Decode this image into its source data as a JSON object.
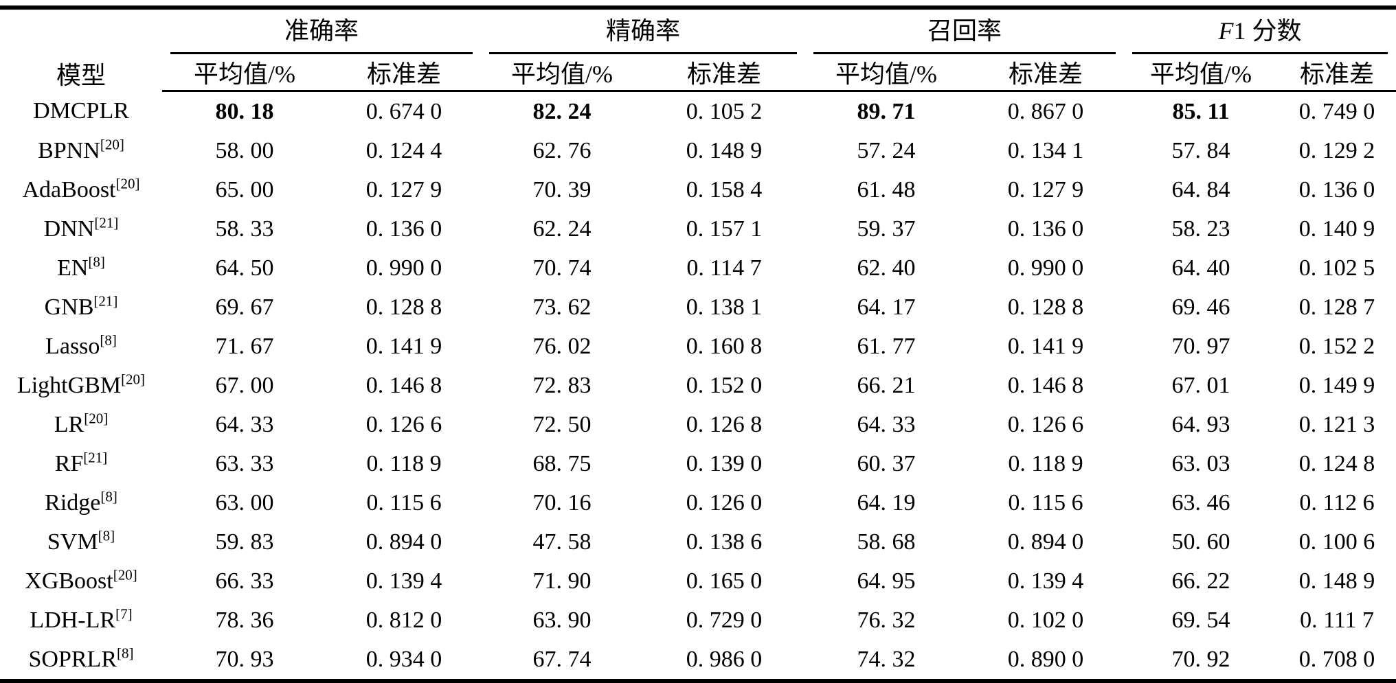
{
  "colors": {
    "background": "#ffffff",
    "text": "#000000",
    "rule": "#000000"
  },
  "table": {
    "model_header": "模型",
    "groups": [
      {
        "pre": "",
        "label": "准确率"
      },
      {
        "pre": "",
        "label": "精确率"
      },
      {
        "pre": "",
        "label": "召回率"
      },
      {
        "pre": "F",
        "label": "1 分数"
      }
    ],
    "sub_mean": "平均值/%",
    "sub_std": "标准差",
    "rows": [
      {
        "model": "DMCPLR",
        "ref": "",
        "bold_means": true,
        "values": [
          "80. 18",
          "0. 674 0",
          "82. 24",
          "0. 105 2",
          "89. 71",
          "0. 867 0",
          "85. 11",
          "0. 749 0"
        ]
      },
      {
        "model": "BPNN",
        "ref": "20",
        "bold_means": false,
        "values": [
          "58. 00",
          "0. 124 4",
          "62. 76",
          "0. 148 9",
          "57. 24",
          "0. 134 1",
          "57. 84",
          "0. 129 2"
        ]
      },
      {
        "model": "AdaBoost",
        "ref": "20",
        "bold_means": false,
        "values": [
          "65. 00",
          "0. 127 9",
          "70. 39",
          "0. 158 4",
          "61. 48",
          "0. 127 9",
          "64. 84",
          "0. 136 0"
        ]
      },
      {
        "model": "DNN",
        "ref": "21",
        "bold_means": false,
        "values": [
          "58. 33",
          "0. 136 0",
          "62. 24",
          "0. 157 1",
          "59. 37",
          "0. 136 0",
          "58. 23",
          "0. 140 9"
        ]
      },
      {
        "model": "EN",
        "ref": "8",
        "bold_means": false,
        "values": [
          "64. 50",
          "0. 990 0",
          "70. 74",
          "0. 114 7",
          "62. 40",
          "0. 990 0",
          "64. 40",
          "0. 102 5"
        ]
      },
      {
        "model": "GNB",
        "ref": "21",
        "bold_means": false,
        "values": [
          "69. 67",
          "0. 128 8",
          "73. 62",
          "0. 138 1",
          "64. 17",
          "0. 128 8",
          "69. 46",
          "0. 128 7"
        ]
      },
      {
        "model": "Lasso",
        "ref": "8",
        "bold_means": false,
        "values": [
          "71. 67",
          "0. 141 9",
          "76. 02",
          "0. 160 8",
          "61. 77",
          "0. 141 9",
          "70. 97",
          "0. 152 2"
        ]
      },
      {
        "model": "LightGBM",
        "ref": "20",
        "bold_means": false,
        "values": [
          "67. 00",
          "0. 146 8",
          "72. 83",
          "0. 152 0",
          "66. 21",
          "0. 146 8",
          "67. 01",
          "0. 149 9"
        ]
      },
      {
        "model": "LR",
        "ref": "20",
        "bold_means": false,
        "values": [
          "64. 33",
          "0. 126 6",
          "72. 50",
          "0. 126 8",
          "64. 33",
          "0. 126 6",
          "64. 93",
          "0. 121 3"
        ]
      },
      {
        "model": "RF",
        "ref": "21",
        "bold_means": false,
        "values": [
          "63. 33",
          "0. 118 9",
          "68. 75",
          "0. 139 0",
          "60. 37",
          "0. 118 9",
          "63. 03",
          "0. 124 8"
        ]
      },
      {
        "model": "Ridge",
        "ref": "8",
        "bold_means": false,
        "values": [
          "63. 00",
          "0. 115 6",
          "70. 16",
          "0. 126 0",
          "64. 19",
          "0. 115 6",
          "63. 46",
          "0. 112 6"
        ]
      },
      {
        "model": "SVM",
        "ref": "8",
        "bold_means": false,
        "values": [
          "59. 83",
          "0. 894 0",
          "47. 58",
          "0. 138 6",
          "58. 68",
          "0. 894 0",
          "50. 60",
          "0. 100 6"
        ]
      },
      {
        "model": "XGBoost",
        "ref": "20",
        "bold_means": false,
        "values": [
          "66. 33",
          "0. 139 4",
          "71. 90",
          "0. 165 0",
          "64. 95",
          "0. 139 4",
          "66. 22",
          "0. 148 9"
        ]
      },
      {
        "model": "LDH-LR",
        "ref": "7",
        "bold_means": false,
        "values": [
          "78. 36",
          "0. 812 0",
          "63. 90",
          "0. 729 0",
          "76. 32",
          "0. 102 0",
          "69. 54",
          "0. 111 7"
        ]
      },
      {
        "model": "SOPRLR",
        "ref": "8",
        "bold_means": false,
        "values": [
          "70. 93",
          "0. 934 0",
          "67. 74",
          "0. 986 0",
          "74. 32",
          "0. 890 0",
          "70. 92",
          "0. 708 0"
        ]
      }
    ]
  }
}
